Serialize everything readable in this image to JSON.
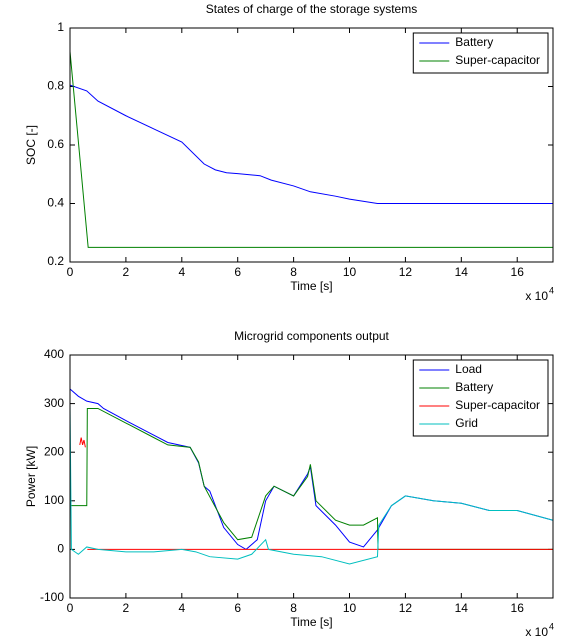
{
  "chart_data": [
    {
      "type": "line",
      "title": "States of charge of the storage systems",
      "xlabel": "Time [s]",
      "ylabel": "SOC [-]",
      "x_multiplier": "x 10",
      "x_multiplier_exponent": "4",
      "xlim": [
        0,
        17.28
      ],
      "xticks": [
        0,
        2,
        4,
        6,
        8,
        10,
        12,
        14,
        16
      ],
      "ylim": [
        0.2,
        1
      ],
      "yticks": [
        0.2,
        0.4,
        0.6,
        0.8,
        1
      ],
      "legend": "northeast",
      "series": [
        {
          "name": "Battery",
          "color": "#0000ff",
          "x": [
            0,
            0.6,
            1,
            2,
            3,
            4,
            4.8,
            5.2,
            5.6,
            6,
            6.8,
            7.2,
            8,
            8.6,
            9.5,
            10,
            11,
            17.28
          ],
          "values": [
            0.805,
            0.785,
            0.75,
            0.7,
            0.655,
            0.61,
            0.535,
            0.515,
            0.505,
            0.502,
            0.495,
            0.48,
            0.46,
            0.44,
            0.425,
            0.415,
            0.4,
            0.4
          ]
        },
        {
          "name": "Super-capacitor",
          "color": "#008000",
          "x": [
            0,
            0.65,
            17.28
          ],
          "values": [
            0.92,
            0.25,
            0.25
          ]
        }
      ]
    },
    {
      "type": "line",
      "title": "Microgrid components output",
      "xlabel": "Time [s]",
      "ylabel": "Power [kW]",
      "x_multiplier": "x 10",
      "x_multiplier_exponent": "4",
      "xlim": [
        0,
        17.28
      ],
      "xticks": [
        0,
        2,
        4,
        6,
        8,
        10,
        12,
        14,
        16
      ],
      "ylim": [
        -100,
        400
      ],
      "yticks": [
        -100,
        0,
        100,
        200,
        300,
        400
      ],
      "legend": "northeast",
      "series": [
        {
          "name": "Load",
          "color": "#0000ff",
          "x": [
            0,
            0.3,
            0.6,
            1,
            1.2,
            2,
            3,
            3.5,
            4.3,
            4.6,
            4.8,
            5,
            5.5,
            6,
            6.3,
            6.7,
            7,
            7.3,
            8,
            8.5,
            8.6,
            8.8,
            9.5,
            10,
            10.5,
            11,
            11.5,
            12,
            13,
            14,
            15,
            16,
            17.28
          ],
          "values": [
            330,
            315,
            305,
            300,
            290,
            265,
            235,
            220,
            210,
            178,
            130,
            120,
            45,
            10,
            0,
            20,
            100,
            130,
            110,
            155,
            170,
            90,
            50,
            15,
            5,
            40,
            90,
            110,
            100,
            95,
            80,
            80,
            60
          ]
        },
        {
          "name": "Battery",
          "color": "#008000",
          "x": [
            0,
            0.6,
            0.62,
            1,
            2,
            3,
            3.5,
            4.3,
            4.6,
            4.8,
            5.5,
            6,
            6.5,
            7,
            7.3,
            8,
            8.5,
            8.6,
            8.8,
            9.5,
            10,
            10.5,
            11,
            11.02,
            17.28
          ],
          "values": [
            90,
            90,
            290,
            290,
            260,
            230,
            215,
            210,
            180,
            130,
            55,
            20,
            25,
            110,
            130,
            110,
            150,
            175,
            100,
            60,
            50,
            50,
            65,
            0,
            0
          ]
        },
        {
          "name": "Super-capacitor",
          "color": "#ff0000",
          "x": [
            0.35,
            0.4,
            0.45,
            0.5,
            0.55,
            0.6,
            0.62,
            17.28
          ],
          "values": [
            215,
            230,
            215,
            225,
            210,
            null,
            0,
            0
          ]
        },
        {
          "name": "Grid",
          "color": "#00bfbf",
          "x": [
            0,
            0.05,
            0.3,
            0.6,
            1,
            2,
            3,
            4,
            4.5,
            5,
            6,
            6.5,
            7,
            7.1,
            8,
            9,
            10,
            11,
            11.05,
            11.5,
            12,
            13,
            14,
            15,
            16,
            17.28
          ],
          "values": [
            300,
            0,
            -10,
            5,
            0,
            -5,
            -5,
            0,
            -5,
            -15,
            -20,
            -10,
            20,
            0,
            -10,
            -15,
            -30,
            -15,
            50,
            90,
            110,
            100,
            95,
            80,
            80,
            60
          ]
        }
      ]
    }
  ]
}
